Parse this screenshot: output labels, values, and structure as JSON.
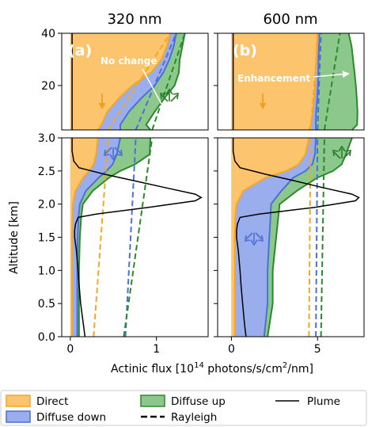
{
  "chart_data": [
    {
      "type": "area",
      "title": "320 nm",
      "panel_label": "(a)",
      "annotation": "No change",
      "xlabel": "Actinic flux [10^14 photons/s/cm^2/nm]",
      "ylabel": "Altitude [km]",
      "xlim": [
        -0.1,
        1.6
      ],
      "xticks": [
        "0",
        "1"
      ],
      "ylim_upper": [
        3,
        40
      ],
      "yticks_upper": [
        "20",
        "40"
      ],
      "ylim_lower": [
        0,
        3
      ],
      "yticks_lower": [
        "0.0",
        "0.5",
        "1.0",
        "1.5",
        "2.0",
        "2.5",
        "3.0"
      ],
      "stacked": true,
      "altitude": [
        0,
        0.5,
        1.0,
        1.5,
        1.8,
        2.0,
        2.2,
        2.4,
        2.5,
        2.6,
        2.75,
        3.0,
        5,
        10,
        15,
        20,
        25,
        30,
        35,
        40
      ],
      "series": [
        {
          "name": "Direct",
          "values": [
            0.02,
            0.02,
            0.02,
            0.02,
            0.025,
            0.03,
            0.06,
            0.15,
            0.22,
            0.27,
            0.3,
            0.32,
            0.36,
            0.43,
            0.56,
            0.72,
            0.94,
            1.06,
            1.12,
            1.16
          ]
        },
        {
          "name": "Diffuse down",
          "values": [
            0.06,
            0.06,
            0.06,
            0.065,
            0.07,
            0.08,
            0.12,
            0.18,
            0.2,
            0.22,
            0.24,
            0.26,
            0.22,
            0.25,
            0.26,
            0.26,
            0.14,
            0.09,
            0.08,
            0.07
          ]
        },
        {
          "name": "Diffuse up",
          "values": [
            0.02,
            0.02,
            0.02,
            0.025,
            0.03,
            0.035,
            0.08,
            0.12,
            0.16,
            0.26,
            0.38,
            0.35,
            0.3,
            0.3,
            0.27,
            0.23,
            0.18,
            0.12,
            0.1,
            0.1
          ]
        }
      ],
      "rayleigh": [
        {
          "name": "Direct",
          "altitude": [
            0,
            3,
            40
          ],
          "values": [
            0.27,
            0.44,
            1.16
          ]
        },
        {
          "name": "Diffuse down",
          "altitude": [
            0,
            3,
            40
          ],
          "values": [
            0.64,
            0.76,
            1.23
          ]
        },
        {
          "name": "Diffuse up",
          "altitude": [
            0,
            3,
            40
          ],
          "values": [
            0.62,
            0.95,
            1.33
          ]
        }
      ],
      "plume": {
        "name": "Plume",
        "altitude": [
          0,
          0.1,
          0.3,
          0.5,
          0.8,
          1.0,
          1.3,
          1.5,
          1.6,
          1.7,
          1.8,
          1.85,
          1.95,
          2.05,
          2.1,
          2.15,
          2.25,
          2.35,
          2.45,
          2.55,
          2.65,
          2.8,
          3.0
        ],
        "values": [
          0.17,
          0.16,
          0.14,
          0.12,
          0.1,
          0.09,
          0.07,
          0.05,
          0.05,
          0.06,
          0.09,
          0.3,
          0.9,
          1.45,
          1.52,
          1.45,
          1.1,
          0.75,
          0.4,
          0.1,
          0.04,
          0.02,
          0.02
        ]
      }
    },
    {
      "type": "area",
      "title": "600 nm",
      "panel_label": "(b)",
      "annotation": "Enhancement",
      "xlabel": "Actinic flux [10^14 photons/s/cm^2/nm]",
      "ylabel": "Altitude [km]",
      "xlim": [
        -0.8,
        7.7
      ],
      "xticks": [
        "0",
        "5"
      ],
      "ylim_upper": [
        3,
        40
      ],
      "yticks_upper": [
        "20",
        "40"
      ],
      "ylim_lower": [
        0,
        3
      ],
      "yticks_lower": [
        "0.0",
        "0.5",
        "1.0",
        "1.5",
        "2.0",
        "2.5",
        "3.0"
      ],
      "stacked": true,
      "altitude": [
        0,
        0.5,
        1.0,
        1.5,
        1.8,
        2.0,
        2.2,
        2.4,
        2.5,
        2.6,
        2.75,
        3.0,
        5,
        10,
        15,
        20,
        25,
        30,
        35,
        40
      ],
      "series": [
        {
          "name": "Direct",
          "values": [
            0.2,
            0.2,
            0.2,
            0.2,
            0.22,
            0.3,
            0.7,
            2.0,
            3.2,
            3.9,
            4.3,
            4.5,
            4.62,
            4.72,
            4.8,
            4.86,
            4.9,
            4.93,
            4.96,
            5.0
          ]
        },
        {
          "name": "Diffuse down",
          "values": [
            1.7,
            1.9,
            1.9,
            2.0,
            2.05,
            2.0,
            2.2,
            1.6,
            1.1,
            0.8,
            0.55,
            0.4,
            0.28,
            0.2,
            0.18,
            0.16,
            0.15,
            0.13,
            0.12,
            0.11
          ]
        },
        {
          "name": "Diffuse up",
          "values": [
            0.2,
            0.3,
            0.3,
            0.4,
            0.45,
            0.5,
            0.9,
            1.4,
            1.6,
            1.7,
            1.8,
            2.1,
            2.4,
            2.4,
            2.3,
            2.2,
            2.1,
            2.0,
            1.9,
            1.7
          ]
        }
      ],
      "rayleigh": [
        {
          "name": "Direct",
          "altitude": [
            0,
            3,
            40
          ],
          "values": [
            4.5,
            4.6,
            5.05
          ]
        },
        {
          "name": "Diffuse down",
          "altitude": [
            0,
            3,
            40
          ],
          "values": [
            4.9,
            5.0,
            5.2
          ]
        },
        {
          "name": "Diffuse up",
          "altitude": [
            0,
            3,
            40
          ],
          "values": [
            5.2,
            5.4,
            6.3
          ]
        }
      ],
      "plume": {
        "name": "Plume",
        "altitude": [
          0,
          0.1,
          0.3,
          0.5,
          0.8,
          1.0,
          1.3,
          1.5,
          1.6,
          1.7,
          1.8,
          1.85,
          1.95,
          2.05,
          2.1,
          2.15,
          2.25,
          2.35,
          2.45,
          2.55,
          2.65,
          2.8,
          3.0
        ],
        "values": [
          0.85,
          0.8,
          0.72,
          0.65,
          0.55,
          0.5,
          0.4,
          0.3,
          0.3,
          0.35,
          0.5,
          1.6,
          4.8,
          7.2,
          7.4,
          7.0,
          5.3,
          3.7,
          2.0,
          0.5,
          0.2,
          0.1,
          0.1
        ]
      }
    }
  ],
  "legend": {
    "placement": "bottom",
    "items": [
      {
        "label": "Direct",
        "kind": "fill",
        "color": "#fdc46e",
        "edge": "#f5a623"
      },
      {
        "label": "Diffuse down",
        "kind": "fill",
        "color": "#9aadec",
        "edge": "#4d6fd6"
      },
      {
        "label": "Diffuse up",
        "kind": "fill",
        "color": "#8cc88c",
        "edge": "#2a8a2a"
      },
      {
        "label": "Rayleigh",
        "kind": "dashed",
        "color": "#000000"
      },
      {
        "label": "Plume",
        "kind": "line",
        "color": "#000000"
      }
    ]
  },
  "colors": {
    "direct_fill": "#fdc46e",
    "direct_edge": "#f5a623",
    "down_fill": "#9aadec",
    "down_edge": "#4d6fd6",
    "up_fill": "#8cc88c",
    "up_edge": "#2a8a2a",
    "plume": "#000000"
  },
  "labels": {
    "xlabel_text": "Actinic flux [10",
    "xlabel_exp1": "14",
    "xlabel_mid": " photons/s/cm",
    "xlabel_exp2": "2",
    "xlabel_end": "/nm]"
  }
}
